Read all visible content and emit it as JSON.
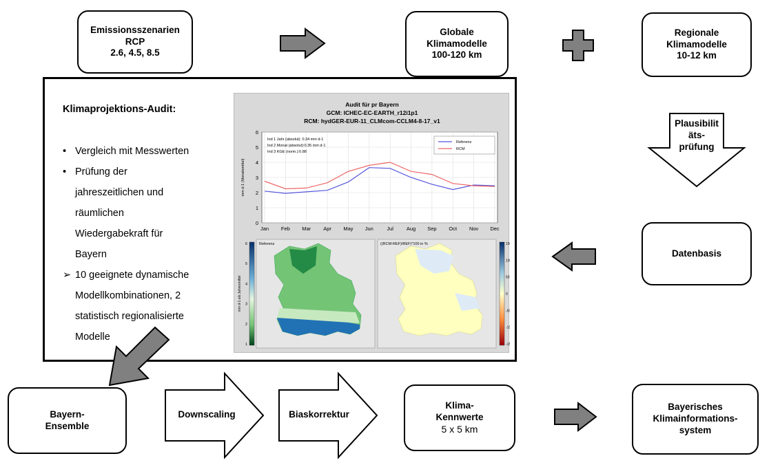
{
  "boxes": {
    "emission": [
      "Emissionsszenarien",
      "RCP",
      "2.6, 4.5, 8.5"
    ],
    "global": [
      "Globale",
      "Klimamodelle",
      "100-120 km"
    ],
    "regional": [
      "Regionale",
      "Klimamodelle",
      "10-12 km"
    ],
    "datenbasis": [
      "Datenbasis"
    ],
    "bayern_ensemble": [
      "Bayern-",
      "Ensemble"
    ],
    "kennwerte": [
      "Klima-",
      "Kennwerte",
      "5 x 5 km"
    ],
    "bkis": [
      "Bayerisches",
      "Klimainformations-",
      "system"
    ]
  },
  "arrows": {
    "plausibility": [
      "Plausibilit",
      "äts-",
      "prüfung"
    ],
    "downscaling": "Downscaling",
    "biaskorrektur": "Biaskorrektur"
  },
  "audit": {
    "title": "Klimaprojektions-Audit:",
    "bullets": [
      {
        "marker": "•",
        "lines": [
          "Vergleich mit Messwerten"
        ]
      },
      {
        "marker": "•",
        "lines": [
          "Prüfung der",
          "jahreszeitlichen und",
          "räumlichen",
          "Wiedergabekraft für",
          "Bayern"
        ]
      },
      {
        "marker": "➢",
        "lines": [
          "10 geeignete dynamische",
          "Modellkombinationen, 2",
          "statistisch regionalisierte",
          "Modelle"
        ]
      }
    ]
  },
  "chart_data": {
    "type": "line",
    "title": "Audit für pr Bayern",
    "subtitle_lines": [
      "GCM: ICHEC-EC-EARTH_r12i1p1",
      "RCM: hydGER-EUR-11_CLMcom-CCLM4-8-17_v1"
    ],
    "ylabel": "mm d-1 (Monatsmittel)",
    "ylim": [
      0,
      6
    ],
    "yticks": [
      0,
      1,
      2,
      3,
      4,
      5,
      6
    ],
    "categories": [
      "Jan",
      "Feb",
      "Mar",
      "Apr",
      "May",
      "Jun",
      "Jul",
      "Aug",
      "Sep",
      "Oct",
      "Nov",
      "Dec"
    ],
    "series": [
      {
        "name": "Referenz",
        "color": "#5555dd",
        "values": [
          2.1,
          1.95,
          2.05,
          2.15,
          2.7,
          3.65,
          3.6,
          3.0,
          2.55,
          2.2,
          2.5,
          2.45
        ]
      },
      {
        "name": "RCM",
        "color": "#ee6666",
        "values": [
          2.75,
          2.25,
          2.3,
          2.65,
          3.4,
          3.8,
          4.0,
          3.4,
          3.2,
          2.6,
          2.45,
          2.4
        ]
      }
    ],
    "annotations": [
      "Ind 1 Jahr (absolut): 0.34 mm d-1",
      "Ind 2 Monat (absolut):0.35 mm d-1",
      "Ind 3 KGE (norm.):0.88"
    ],
    "grid": true,
    "legend": "top-right",
    "maps": {
      "left_title": "Referenz",
      "left_ylabel": "mm d-1 als Jahresmittel",
      "left_ticks": [
        "6",
        "5",
        "4",
        "3",
        "2",
        "1"
      ],
      "right_title": "((RCM-REF)/REF)*100 in %",
      "right_ticks": [
        "150",
        "100",
        "50",
        "0",
        "-50",
        "-100",
        "-150"
      ]
    }
  }
}
